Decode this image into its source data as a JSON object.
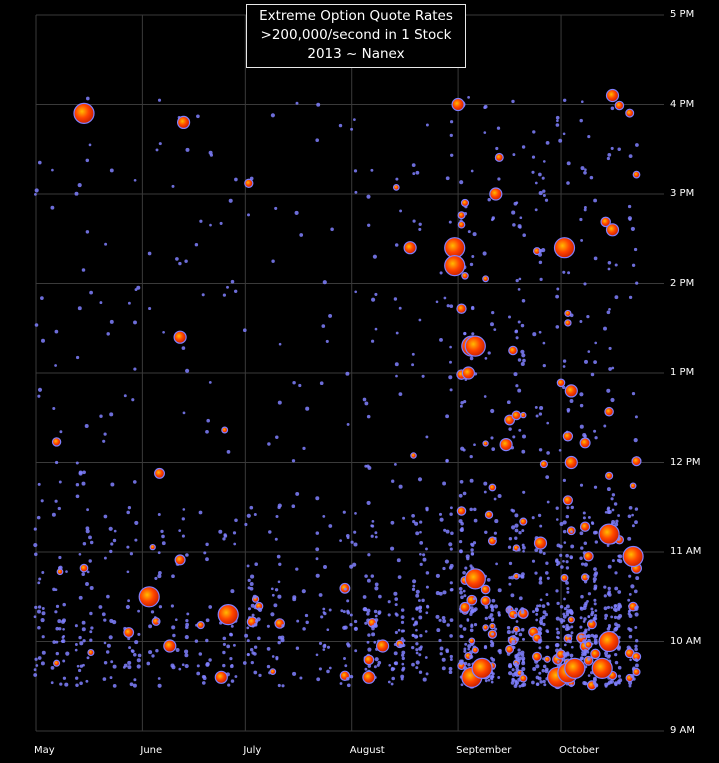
{
  "chart_data": {
    "type": "scatter",
    "title": [
      "Extreme Option Quote Rates",
      ">200,000/second in 1 Stock",
      "2013 ~ Nanex"
    ],
    "xlabel": "",
    "ylabel": "",
    "x_ticks": [
      "May",
      "June",
      "July",
      "August",
      "September",
      "October"
    ],
    "y_ticks": [
      "9 AM",
      "10 AM",
      "11 AM",
      "12 PM",
      "1 PM",
      "2 PM",
      "3 PM",
      "4 PM",
      "5 PM"
    ],
    "x_range": [
      "2013-05-01",
      "2013-10-31"
    ],
    "y_range_hours": [
      9,
      17
    ],
    "grid": true,
    "colors": {
      "background": "#000000",
      "grid": "#3a3a3a",
      "small_marker": "#8080ff",
      "large_marker": "#ff4400"
    },
    "notable_points": [
      {
        "date": "2013-05-15",
        "time": 15.9,
        "size": "large"
      },
      {
        "date": "2013-06-03",
        "time": 10.5,
        "size": "large"
      },
      {
        "date": "2013-06-09",
        "time": 9.95,
        "size": "medium"
      },
      {
        "date": "2013-06-12",
        "time": 13.4,
        "size": "medium"
      },
      {
        "date": "2013-06-13",
        "time": 15.8,
        "size": "medium"
      },
      {
        "date": "2013-06-26",
        "time": 10.3,
        "size": "large"
      },
      {
        "date": "2013-06-24",
        "time": 9.6,
        "size": "medium"
      },
      {
        "date": "2013-08-06",
        "time": 9.6,
        "size": "medium"
      },
      {
        "date": "2013-08-10",
        "time": 9.95,
        "size": "medium"
      },
      {
        "date": "2013-08-18",
        "time": 14.4,
        "size": "medium"
      },
      {
        "date": "2013-08-31",
        "time": 14.4,
        "size": "large"
      },
      {
        "date": "2013-08-31",
        "time": 14.2,
        "size": "large"
      },
      {
        "date": "2013-09-01",
        "time": 16.0,
        "size": "medium"
      },
      {
        "date": "2013-09-04",
        "time": 13.0,
        "size": "medium"
      },
      {
        "date": "2013-09-05",
        "time": 13.3,
        "size": "large"
      },
      {
        "date": "2013-09-06",
        "time": 13.3,
        "size": "large"
      },
      {
        "date": "2013-09-06",
        "time": 10.7,
        "size": "large"
      },
      {
        "date": "2013-09-05",
        "time": 9.6,
        "size": "large"
      },
      {
        "date": "2013-09-08",
        "time": 9.7,
        "size": "large"
      },
      {
        "date": "2013-09-12",
        "time": 15.0,
        "size": "medium"
      },
      {
        "date": "2013-09-15",
        "time": 12.2,
        "size": "medium"
      },
      {
        "date": "2013-09-25",
        "time": 11.1,
        "size": "medium"
      },
      {
        "date": "2013-09-30",
        "time": 9.6,
        "size": "large"
      },
      {
        "date": "2013-10-02",
        "time": 14.4,
        "size": "large"
      },
      {
        "date": "2013-10-03",
        "time": 9.65,
        "size": "large"
      },
      {
        "date": "2013-10-05",
        "time": 9.7,
        "size": "large"
      },
      {
        "date": "2013-10-04",
        "time": 12.0,
        "size": "medium"
      },
      {
        "date": "2013-10-04",
        "time": 12.8,
        "size": "medium"
      },
      {
        "date": "2013-10-13",
        "time": 9.7,
        "size": "large"
      },
      {
        "date": "2013-10-15",
        "time": 10.0,
        "size": "large"
      },
      {
        "date": "2013-10-15",
        "time": 11.2,
        "size": "large"
      },
      {
        "date": "2013-10-16",
        "time": 14.6,
        "size": "medium"
      },
      {
        "date": "2013-10-22",
        "time": 10.95,
        "size": "large"
      },
      {
        "date": "2013-10-16",
        "time": 16.1,
        "size": "medium"
      }
    ]
  }
}
